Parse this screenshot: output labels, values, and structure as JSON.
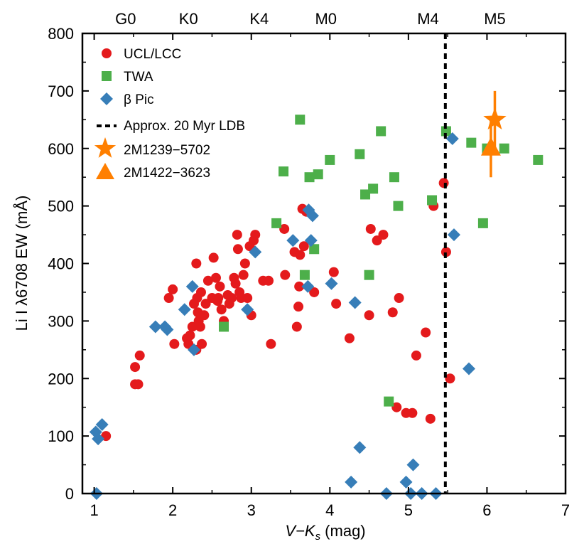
{
  "chart_data": {
    "type": "scatter",
    "xlabel_var": "V−K",
    "xlabel_sub": "s",
    "xlabel_unit": " (mag)",
    "ylabel": "Li I λ6708 EW (mÅ)",
    "xlim": [
      0.85,
      7.0
    ],
    "ylim": [
      0,
      800
    ],
    "xticks": [
      1,
      2,
      3,
      4,
      5,
      6,
      7
    ],
    "yticks": [
      0,
      100,
      200,
      300,
      400,
      500,
      600,
      700,
      800
    ],
    "spectral_types": [
      {
        "label": "G0",
        "x": 1.4
      },
      {
        "label": "K0",
        "x": 2.2
      },
      {
        "label": "K4",
        "x": 3.1
      },
      {
        "label": "M0",
        "x": 3.95
      },
      {
        "label": "M4",
        "x": 5.25
      },
      {
        "label": "M5",
        "x": 6.1
      }
    ],
    "ldb_line": {
      "label": "Approx. 20 Myr LDB",
      "x": 5.47
    },
    "colors": {
      "ucl": "#e41a1c",
      "twa": "#4daf4a",
      "bpic": "#377eb8",
      "highlight": "#ff7f00"
    },
    "series": [
      {
        "name": "UCL/LCC",
        "marker": "circle",
        "points": [
          [
            1.15,
            100
          ],
          [
            1.52,
            220
          ],
          [
            1.52,
            190
          ],
          [
            1.56,
            190
          ],
          [
            1.58,
            240
          ],
          [
            1.95,
            340
          ],
          [
            2.0,
            355
          ],
          [
            2.02,
            260
          ],
          [
            2.18,
            270
          ],
          [
            2.2,
            260
          ],
          [
            2.22,
            275
          ],
          [
            2.25,
            290
          ],
          [
            2.27,
            330
          ],
          [
            2.3,
            400
          ],
          [
            2.3,
            250
          ],
          [
            2.31,
            340
          ],
          [
            2.32,
            315
          ],
          [
            2.33,
            300
          ],
          [
            2.35,
            290
          ],
          [
            2.36,
            350
          ],
          [
            2.37,
            260
          ],
          [
            2.4,
            310
          ],
          [
            2.42,
            330
          ],
          [
            2.45,
            370
          ],
          [
            2.5,
            340
          ],
          [
            2.52,
            410
          ],
          [
            2.55,
            375
          ],
          [
            2.57,
            335
          ],
          [
            2.58,
            340
          ],
          [
            2.6,
            360
          ],
          [
            2.62,
            320
          ],
          [
            2.65,
            300
          ],
          [
            2.7,
            345
          ],
          [
            2.72,
            330
          ],
          [
            2.75,
            340
          ],
          [
            2.78,
            375
          ],
          [
            2.8,
            365
          ],
          [
            2.82,
            450
          ],
          [
            2.83,
            425
          ],
          [
            2.85,
            350
          ],
          [
            2.87,
            340
          ],
          [
            2.9,
            380
          ],
          [
            2.92,
            400
          ],
          [
            2.95,
            340
          ],
          [
            2.98,
            430
          ],
          [
            3.0,
            310
          ],
          [
            3.03,
            440
          ],
          [
            3.05,
            450
          ],
          [
            3.15,
            370
          ],
          [
            3.22,
            370
          ],
          [
            3.25,
            260
          ],
          [
            3.42,
            460
          ],
          [
            3.43,
            380
          ],
          [
            3.55,
            420
          ],
          [
            3.58,
            290
          ],
          [
            3.6,
            325
          ],
          [
            3.61,
            360
          ],
          [
            3.62,
            415
          ],
          [
            3.65,
            495
          ],
          [
            3.67,
            430
          ],
          [
            3.7,
            490
          ],
          [
            3.8,
            350
          ],
          [
            4.05,
            385
          ],
          [
            4.08,
            330
          ],
          [
            4.25,
            270
          ],
          [
            4.5,
            310
          ],
          [
            4.52,
            460
          ],
          [
            4.6,
            440
          ],
          [
            4.68,
            450
          ],
          [
            4.8,
            315
          ],
          [
            4.85,
            150
          ],
          [
            4.88,
            340
          ],
          [
            4.97,
            140
          ],
          [
            5.05,
            140
          ],
          [
            5.1,
            240
          ],
          [
            5.22,
            280
          ],
          [
            5.28,
            130
          ],
          [
            5.32,
            500
          ],
          [
            5.45,
            540
          ],
          [
            5.48,
            420
          ],
          [
            5.53,
            200
          ]
        ]
      },
      {
        "name": "TWA",
        "marker": "square",
        "points": [
          [
            2.65,
            290
          ],
          [
            3.32,
            470
          ],
          [
            3.41,
            560
          ],
          [
            3.62,
            650
          ],
          [
            3.68,
            380
          ],
          [
            3.74,
            550
          ],
          [
            3.8,
            425
          ],
          [
            3.85,
            555
          ],
          [
            4.0,
            580
          ],
          [
            4.38,
            590
          ],
          [
            4.45,
            520
          ],
          [
            4.5,
            380
          ],
          [
            4.55,
            530
          ],
          [
            4.65,
            630
          ],
          [
            4.75,
            160
          ],
          [
            4.82,
            550
          ],
          [
            4.87,
            500
          ],
          [
            5.3,
            510
          ],
          [
            5.48,
            630
          ],
          [
            5.8,
            610
          ],
          [
            5.95,
            470
          ],
          [
            6.0,
            600
          ],
          [
            6.22,
            600
          ],
          [
            6.65,
            580
          ]
        ]
      },
      {
        "name": "β Pic",
        "marker": "diamond",
        "points": [
          [
            1.02,
            107
          ],
          [
            1.03,
            0
          ],
          [
            1.05,
            95
          ],
          [
            1.1,
            120
          ],
          [
            1.78,
            290
          ],
          [
            1.9,
            290
          ],
          [
            1.93,
            285
          ],
          [
            2.15,
            320
          ],
          [
            2.25,
            360
          ],
          [
            2.27,
            250
          ],
          [
            3.05,
            420
          ],
          [
            2.95,
            320
          ],
          [
            3.53,
            440
          ],
          [
            3.72,
            360
          ],
          [
            3.73,
            493
          ],
          [
            3.76,
            440
          ],
          [
            3.78,
            483
          ],
          [
            4.02,
            365
          ],
          [
            4.27,
            20
          ],
          [
            4.32,
            332
          ],
          [
            4.38,
            80
          ],
          [
            4.72,
            0
          ],
          [
            4.97,
            20
          ],
          [
            5.03,
            0
          ],
          [
            5.06,
            50
          ],
          [
            5.17,
            0
          ],
          [
            5.35,
            0
          ],
          [
            5.56,
            617
          ],
          [
            5.58,
            450
          ],
          [
            5.77,
            217
          ]
        ]
      }
    ],
    "highlight": [
      {
        "name": "2M1239−5702",
        "marker": "star",
        "x": 6.1,
        "y": 650,
        "yerr": 50,
        "xerr": 0
      },
      {
        "name": "2M1422−3623",
        "marker": "triangle",
        "x": 6.05,
        "y": 600,
        "yerr": 50,
        "xerr": 0.05
      }
    ]
  }
}
